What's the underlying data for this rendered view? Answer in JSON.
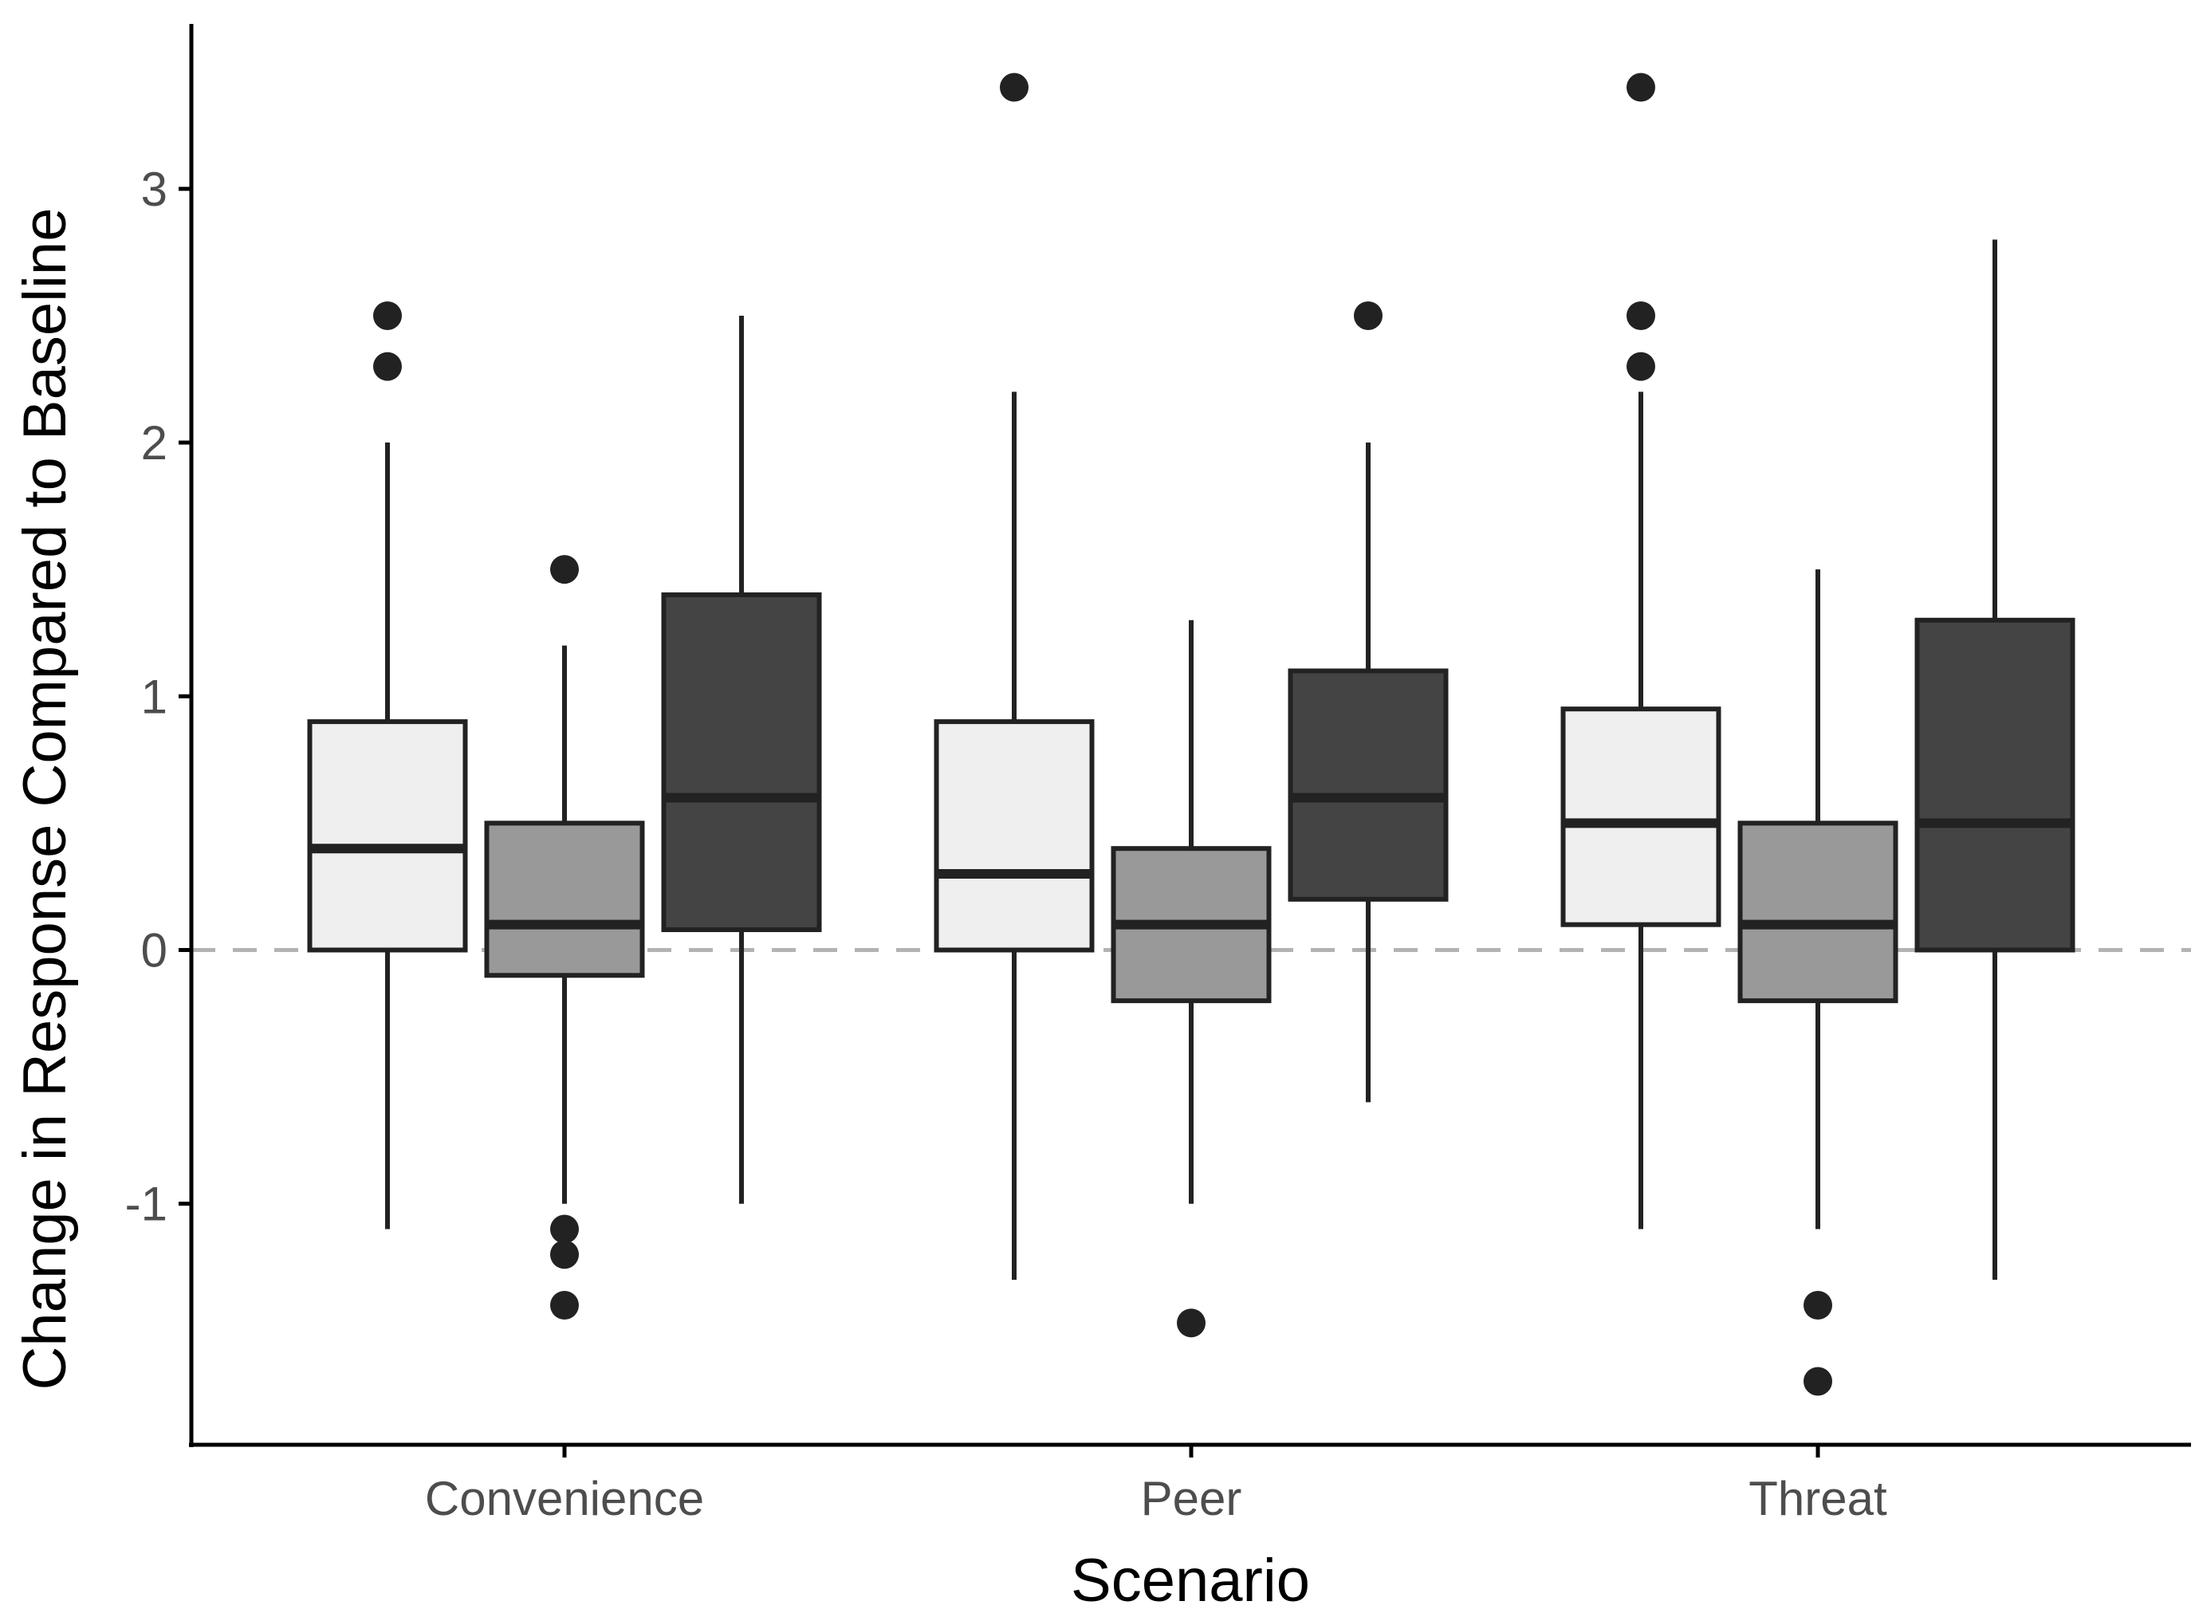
{
  "chart_data": {
    "type": "box",
    "xlabel": "Scenario",
    "ylabel": "Change in Response Compared to Baseline",
    "categories": [
      "Convenience",
      "Peer",
      "Threat"
    ],
    "yticks": [
      -1,
      0,
      1,
      2,
      3
    ],
    "ylim": [
      -1.95,
      3.65
    ],
    "reference_line": {
      "y": 0,
      "style": "dashed",
      "color": "#b3b3b3"
    },
    "legend": "none",
    "series": [
      {
        "fill": "#efefef",
        "boxes": [
          {
            "category": "Convenience",
            "q1": 0,
            "median": 0.4,
            "q3": 0.9,
            "whisker_low": -1.1,
            "whisker_high": 2.0,
            "outliers": [
              2.3,
              2.5
            ]
          },
          {
            "category": "Peer",
            "q1": 0,
            "median": 0.3,
            "q3": 0.9,
            "whisker_low": -1.3,
            "whisker_high": 2.2,
            "outliers": [
              3.4
            ]
          },
          {
            "category": "Threat",
            "q1": 0.1,
            "median": 0.5,
            "q3": 0.95,
            "whisker_low": -1.1,
            "whisker_high": 2.2,
            "outliers": [
              2.3,
              2.5,
              3.4
            ]
          }
        ]
      },
      {
        "fill": "#999999",
        "boxes": [
          {
            "category": "Convenience",
            "q1": -0.1,
            "median": 0.1,
            "q3": 0.5,
            "whisker_low": -1.0,
            "whisker_high": 1.2,
            "outliers": [
              -1.4,
              -1.2,
              -1.1,
              1.5
            ]
          },
          {
            "category": "Peer",
            "q1": -0.2,
            "median": 0.1,
            "q3": 0.4,
            "whisker_low": -1.0,
            "whisker_high": 1.3,
            "outliers": [
              -1.47
            ]
          },
          {
            "category": "Threat",
            "q1": -0.2,
            "median": 0.1,
            "q3": 0.5,
            "whisker_low": -1.1,
            "whisker_high": 1.5,
            "outliers": [
              -1.7,
              -1.4
            ]
          }
        ]
      },
      {
        "fill": "#444444",
        "boxes": [
          {
            "category": "Convenience",
            "q1": 0.08,
            "median": 0.6,
            "q3": 1.4,
            "whisker_low": -1.0,
            "whisker_high": 2.5,
            "outliers": []
          },
          {
            "category": "Peer",
            "q1": 0.2,
            "median": 0.6,
            "q3": 1.1,
            "whisker_low": -0.6,
            "whisker_high": 2.0,
            "outliers": [
              2.5
            ]
          },
          {
            "category": "Threat",
            "q1": 0,
            "median": 0.5,
            "q3": 1.3,
            "whisker_low": -1.3,
            "whisker_high": 2.8,
            "outliers": []
          }
        ]
      }
    ],
    "colors": {
      "ink": "#222222",
      "axis": "#000000",
      "tick_text": "#4d4d4d"
    }
  }
}
